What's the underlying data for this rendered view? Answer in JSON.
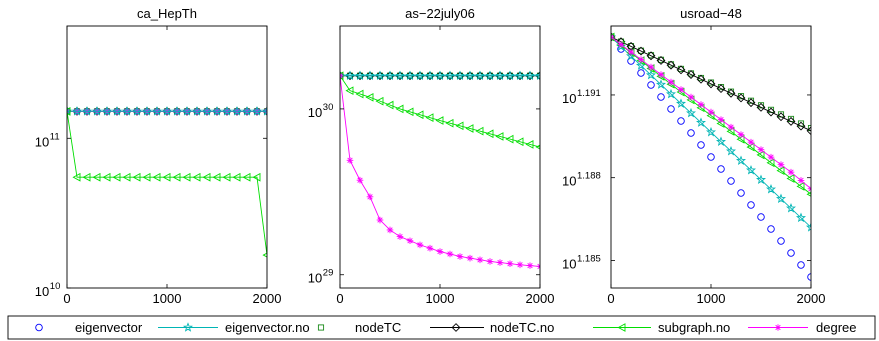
{
  "chart_data": [
    {
      "type": "line",
      "title": "ca_HepTh",
      "xlabel": "",
      "ylabel": "",
      "yscale": "log",
      "xlim": [
        0,
        2000
      ],
      "ylim_log10": [
        10,
        11.75
      ],
      "x_ticks": [
        {
          "v": 0,
          "label": "0"
        },
        {
          "v": 1000,
          "label": "1000"
        },
        {
          "v": 2000,
          "label": "2000"
        }
      ],
      "y_ticks": [
        {
          "v": 10,
          "label": "10",
          "exp": "10"
        },
        {
          "v": 11,
          "label": "10",
          "exp": "11"
        }
      ],
      "series": [
        {
          "key": "nodeTC",
          "log10_values": [
            {
              "x": 0,
              "y": 11.18
            },
            {
              "x": 2000,
              "y": 11.18
            }
          ]
        },
        {
          "key": "nodeTC.no",
          "log10_values": [
            {
              "x": 0,
              "y": 11.18
            },
            {
              "x": 2000,
              "y": 11.18
            }
          ]
        },
        {
          "key": "degree",
          "log10_values": [
            {
              "x": 0,
              "y": 11.18
            },
            {
              "x": 2000,
              "y": 11.18
            }
          ]
        },
        {
          "key": "eigenvector.no",
          "log10_values": [
            {
              "x": 0,
              "y": 11.18
            },
            {
              "x": 2000,
              "y": 11.18
            }
          ]
        },
        {
          "key": "subgraph.no",
          "log10_values": [
            {
              "x": 0,
              "y": 11.18
            },
            {
              "x": 100,
              "y": 10.74
            },
            {
              "x": 1900,
              "y": 10.74
            },
            {
              "x": 2000,
              "y": 10.22
            }
          ]
        }
      ]
    },
    {
      "type": "line",
      "title": "as−22july06",
      "xlabel": "",
      "ylabel": "",
      "yscale": "log",
      "xlim": [
        0,
        2000
      ],
      "ylim_log10": [
        28.92,
        30.5
      ],
      "x_ticks": [
        {
          "v": 0,
          "label": "0"
        },
        {
          "v": 1000,
          "label": "1000"
        },
        {
          "v": 2000,
          "label": "2000"
        }
      ],
      "y_ticks": [
        {
          "v": 29,
          "label": "10",
          "exp": "29"
        },
        {
          "v": 30,
          "label": "10",
          "exp": "30"
        }
      ],
      "series": [
        {
          "key": "nodeTC",
          "log10_values": [
            {
              "x": 0,
              "y": 30.2
            },
            {
              "x": 2000,
              "y": 30.2
            }
          ]
        },
        {
          "key": "nodeTC.no",
          "log10_values": [
            {
              "x": 0,
              "y": 30.2
            },
            {
              "x": 2000,
              "y": 30.2
            }
          ]
        },
        {
          "key": "eigenvector.no",
          "log10_values": [
            {
              "x": 0,
              "y": 30.2
            },
            {
              "x": 2000,
              "y": 30.2
            }
          ]
        },
        {
          "key": "subgraph.no",
          "log10_values": [
            {
              "x": 0,
              "y": 30.2
            },
            {
              "x": 100,
              "y": 30.11
            },
            {
              "x": 300,
              "y": 30.07
            },
            {
              "x": 600,
              "y": 30.0
            },
            {
              "x": 1000,
              "y": 29.93
            },
            {
              "x": 1500,
              "y": 29.85
            },
            {
              "x": 2000,
              "y": 29.77
            }
          ]
        },
        {
          "key": "degree",
          "log10_values": [
            {
              "x": 0,
              "y": 30.2
            },
            {
              "x": 100,
              "y": 29.69
            },
            {
              "x": 200,
              "y": 29.57
            },
            {
              "x": 300,
              "y": 29.47
            },
            {
              "x": 400,
              "y": 29.33
            },
            {
              "x": 500,
              "y": 29.27
            },
            {
              "x": 600,
              "y": 29.23
            },
            {
              "x": 800,
              "y": 29.18
            },
            {
              "x": 1000,
              "y": 29.14
            },
            {
              "x": 1200,
              "y": 29.11
            },
            {
              "x": 1500,
              "y": 29.08
            },
            {
              "x": 1800,
              "y": 29.06
            },
            {
              "x": 2000,
              "y": 29.05
            }
          ]
        }
      ]
    },
    {
      "type": "line",
      "title": "usroad−48",
      "xlabel": "",
      "ylabel": "",
      "yscale": "log",
      "xlim": [
        0,
        2000
      ],
      "ylim_log10": [
        1.184,
        1.1935
      ],
      "x_ticks": [
        {
          "v": 0,
          "label": "0"
        },
        {
          "v": 1000,
          "label": "1000"
        },
        {
          "v": 2000,
          "label": "2000"
        }
      ],
      "y_ticks": [
        {
          "v": 1.185,
          "label": "10",
          "exp": "1.185"
        },
        {
          "v": 1.188,
          "label": "10",
          "exp": "1.188"
        },
        {
          "v": 1.191,
          "label": "10",
          "exp": "1.191"
        }
      ],
      "series": [
        {
          "key": "eigenvector",
          "log10_values": [
            {
              "x": 0,
              "y": 1.1931
            },
            {
              "x": 2000,
              "y": 1.1844
            }
          ]
        },
        {
          "key": "eigenvector.no",
          "log10_values": [
            {
              "x": 0,
              "y": 1.1931
            },
            {
              "x": 2000,
              "y": 1.1862
            }
          ]
        },
        {
          "key": "nodeTC",
          "log10_values": [
            {
              "x": 0,
              "y": 1.1931
            },
            {
              "x": 2000,
              "y": 1.1898
            }
          ]
        },
        {
          "key": "nodeTC.no",
          "log10_values": [
            {
              "x": 0,
              "y": 1.1931
            },
            {
              "x": 2000,
              "y": 1.1897
            }
          ]
        },
        {
          "key": "subgraph.no",
          "log10_values": [
            {
              "x": 0,
              "y": 1.1931
            },
            {
              "x": 2000,
              "y": 1.1874
            }
          ]
        },
        {
          "key": "degree",
          "log10_values": [
            {
              "x": 0,
              "y": 1.1931
            },
            {
              "x": 1800,
              "y": 1.1882
            },
            {
              "x": 2000,
              "y": 1.1876
            }
          ]
        }
      ]
    }
  ],
  "legend": {
    "placement": "bottom",
    "entries": [
      {
        "key": "eigenvector",
        "label": "eigenvector",
        "color": "#0000ff",
        "marker": "circle",
        "line": false
      },
      {
        "key": "eigenvector.no",
        "label": "eigenvector.no",
        "color": "#00b5b5",
        "marker": "star",
        "line": true
      },
      {
        "key": "nodeTC",
        "label": "nodeTC",
        "color": "#1a8a1a",
        "marker": "square",
        "line": false
      },
      {
        "key": "nodeTC.no",
        "label": "nodeTC.no",
        "color": "#000000",
        "marker": "diamond",
        "line": true
      },
      {
        "key": "subgraph.no",
        "label": "subgraph.no",
        "color": "#00dd00",
        "marker": "triangle",
        "line": true
      },
      {
        "key": "degree",
        "label": "degree",
        "color": "#ff00ff",
        "marker": "asterisk",
        "line": true
      }
    ]
  }
}
